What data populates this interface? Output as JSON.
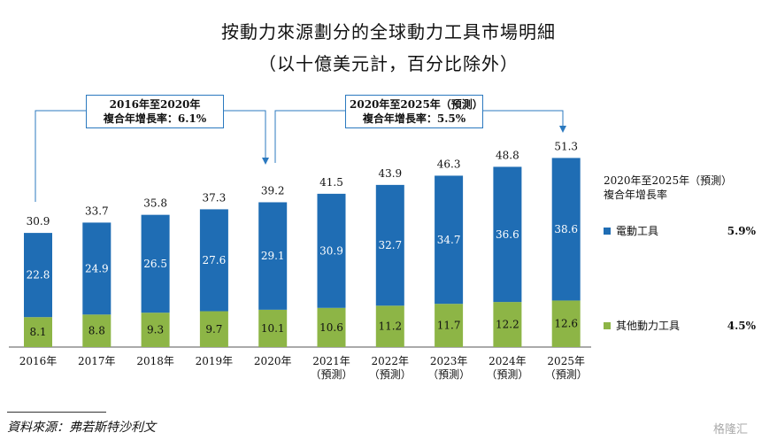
{
  "title_line1": "按動力來源劃分的全球動力工具市場明細",
  "title_line2": "（以十億美元計，百分比除外）",
  "cagr_hist": {
    "period": "2016年至2020年",
    "label": "複合年增長率：6.1%"
  },
  "cagr_fcst": {
    "period": "2020年至2025年（預測）",
    "label": "複合年增長率：5.5%"
  },
  "legend": {
    "header_line1": "2020年至2025年（預測）",
    "header_line2": "複合年增長率",
    "items": [
      {
        "name": "電動工具",
        "pct": "5.9%",
        "color": "#1f6db4"
      },
      {
        "name": "其他動力工具",
        "pct": "4.5%",
        "color": "#8db546"
      }
    ]
  },
  "source": "資料來源：弗若斯特沙利文",
  "watermark": "格隆汇",
  "chart_data": {
    "type": "bar",
    "stacked": true,
    "categories": [
      [
        "2016年"
      ],
      [
        "2017年"
      ],
      [
        "2018年"
      ],
      [
        "2019年"
      ],
      [
        "2020年"
      ],
      [
        "2021年",
        "（預測）"
      ],
      [
        "2022年",
        "（預測）"
      ],
      [
        "2023年",
        "（預測）"
      ],
      [
        "2024年",
        "（預測）"
      ],
      [
        "2025年",
        "（預測）"
      ]
    ],
    "series": [
      {
        "name": "其他動力工具",
        "color": "#8db546",
        "values": [
          8.1,
          8.8,
          9.3,
          9.7,
          10.1,
          10.6,
          11.2,
          11.7,
          12.2,
          12.6
        ]
      },
      {
        "name": "電動工具",
        "color": "#1f6db4",
        "values": [
          22.8,
          24.9,
          26.5,
          27.6,
          29.1,
          30.9,
          32.7,
          34.7,
          36.6,
          38.6
        ]
      }
    ],
    "totals": [
      30.9,
      33.7,
      35.8,
      37.3,
      39.2,
      41.5,
      43.9,
      46.3,
      48.8,
      51.3
    ],
    "ylim": [
      0,
      51.3
    ]
  }
}
